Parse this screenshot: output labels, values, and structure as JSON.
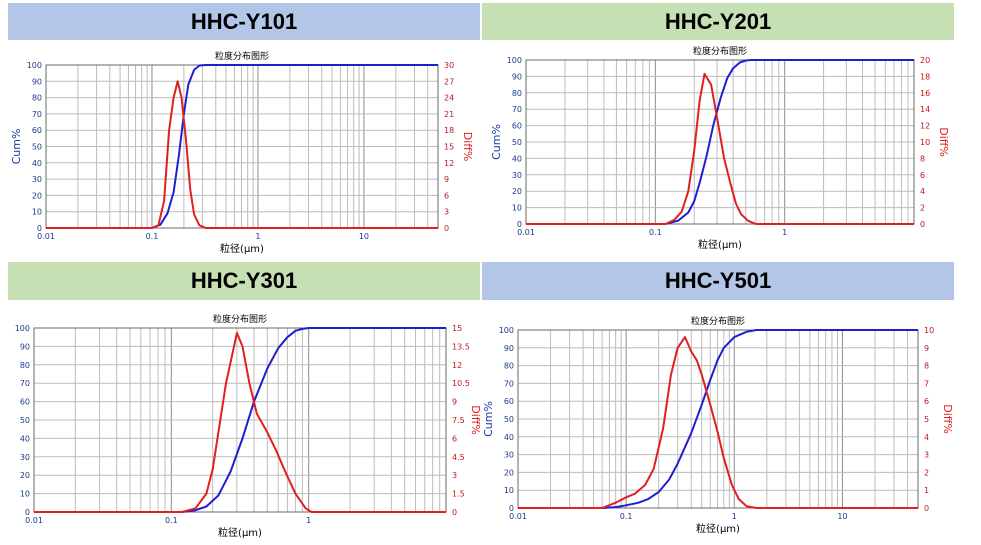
{
  "colors": {
    "cum": "#1f1fd0",
    "diff": "#e02020",
    "header_blue": "#b4c6e7",
    "header_green": "#c6e0b4",
    "grid": "#9a9a9a",
    "axis_label": "#1a3a8a"
  },
  "panels": [
    {
      "header": "HHC-Y101"
    },
    {
      "header": "HHC-Y201"
    },
    {
      "header": "HHC-Y301"
    },
    {
      "header": "HHC-Y501"
    }
  ],
  "chart_data": [
    {
      "type": "line",
      "title": "粒度分布图形",
      "xlabel": "粒径(μm)",
      "ylabel": "Cum%",
      "y2label": "Diff%",
      "xscale": "log",
      "xlim": [
        0.01,
        50
      ],
      "x_ticks": [
        "0.01",
        "0.1",
        "1",
        "10"
      ],
      "ylim": [
        0,
        100
      ],
      "y_ticks": [
        "0",
        "10",
        "20",
        "30",
        "40",
        "50",
        "60",
        "70",
        "80",
        "90",
        "100"
      ],
      "y2lim": [
        0,
        30
      ],
      "y2_ticks": [
        "0",
        "3",
        "6",
        "9",
        "12",
        "15",
        "18",
        "21",
        "24",
        "27",
        "30"
      ],
      "series": [
        {
          "name": "Cum%",
          "axis": "left",
          "x": [
            0.01,
            0.1,
            0.12,
            0.14,
            0.16,
            0.18,
            0.2,
            0.22,
            0.25,
            0.28,
            0.32,
            50
          ],
          "y": [
            0,
            0,
            2,
            9,
            22,
            45,
            70,
            88,
            97,
            99.7,
            100,
            100
          ]
        },
        {
          "name": "Diff%",
          "axis": "right",
          "x": [
            0.01,
            0.1,
            0.115,
            0.13,
            0.145,
            0.16,
            0.175,
            0.19,
            0.21,
            0.23,
            0.25,
            0.28,
            0.32,
            50
          ],
          "y": [
            0,
            0,
            0.5,
            5,
            18,
            24,
            27,
            24,
            16,
            7,
            2.5,
            0.5,
            0,
            0
          ]
        }
      ]
    },
    {
      "type": "line",
      "title": "粒度分布图形",
      "xlabel": "粒径(μm)",
      "ylabel": "Cum%",
      "y2label": "Diff%",
      "xscale": "log",
      "xlim": [
        0.01,
        10
      ],
      "x_ticks": [
        "0.01",
        "0.1",
        "1"
      ],
      "ylim": [
        0,
        100
      ],
      "y_ticks": [
        "0",
        "10",
        "20",
        "30",
        "40",
        "50",
        "60",
        "70",
        "80",
        "90",
        "100"
      ],
      "y2lim": [
        0,
        20
      ],
      "y2_ticks": [
        "0",
        "2",
        "4",
        "6",
        "8",
        "10",
        "12",
        "14",
        "16",
        "18",
        "20"
      ],
      "series": [
        {
          "name": "Cum%",
          "axis": "left",
          "x": [
            0.01,
            0.12,
            0.15,
            0.18,
            0.2,
            0.22,
            0.25,
            0.28,
            0.32,
            0.36,
            0.4,
            0.45,
            0.5,
            0.55,
            10
          ],
          "y": [
            0,
            0,
            2,
            7,
            14,
            25,
            42,
            60,
            77,
            89,
            95,
            98.5,
            99.7,
            100,
            100
          ]
        },
        {
          "name": "Diff%",
          "axis": "right",
          "x": [
            0.01,
            0.12,
            0.14,
            0.16,
            0.18,
            0.2,
            0.22,
            0.24,
            0.27,
            0.3,
            0.34,
            0.38,
            0.42,
            0.46,
            0.52,
            0.6,
            10
          ],
          "y": [
            0,
            0,
            0.5,
            1.5,
            4,
            9,
            15,
            18.3,
            17,
            13,
            8,
            5,
            2.5,
            1.2,
            0.4,
            0,
            0
          ]
        }
      ]
    },
    {
      "type": "line",
      "title": "粒度分布图形",
      "xlabel": "粒径(μm)",
      "ylabel": "Cum%",
      "y2label": "Diff%",
      "xscale": "log",
      "xlim": [
        0.01,
        10
      ],
      "x_ticks": [
        "0.01",
        "0.1",
        "1"
      ],
      "ylim": [
        0,
        100
      ],
      "y_ticks": [
        "0",
        "10",
        "20",
        "30",
        "40",
        "50",
        "60",
        "70",
        "80",
        "90",
        "100"
      ],
      "y2lim": [
        0,
        15
      ],
      "y2_ticks": [
        "0",
        "1.5",
        "3",
        "4.5",
        "6",
        "7.5",
        "9",
        "10.5",
        "12",
        "13.5",
        "15"
      ],
      "series": [
        {
          "name": "Cum%",
          "axis": "left",
          "x": [
            0.01,
            0.12,
            0.15,
            0.18,
            0.22,
            0.27,
            0.33,
            0.4,
            0.5,
            0.6,
            0.7,
            0.8,
            0.9,
            1.0,
            10
          ],
          "y": [
            0,
            0,
            1,
            3,
            9,
            22,
            40,
            60,
            78,
            89,
            95,
            98.5,
            99.5,
            100,
            100
          ]
        },
        {
          "name": "Diff%",
          "axis": "right",
          "x": [
            0.01,
            0.12,
            0.15,
            0.18,
            0.2,
            0.22,
            0.25,
            0.28,
            0.3,
            0.33,
            0.37,
            0.42,
            0.5,
            0.58,
            0.68,
            0.8,
            0.95,
            1.05,
            10
          ],
          "y": [
            0,
            0,
            0.3,
            1.5,
            3.5,
            6.5,
            10.5,
            13,
            14.6,
            13.5,
            10.5,
            8,
            6.5,
            5,
            3.2,
            1.5,
            0.3,
            0,
            0
          ]
        }
      ]
    },
    {
      "type": "line",
      "title": "粒度分布图形",
      "xlabel": "粒径(μm)",
      "ylabel": "Cum%",
      "y2label": "Diff%",
      "xscale": "log",
      "xlim": [
        0.01,
        50
      ],
      "x_ticks": [
        "0.01",
        "0.1",
        "1",
        "10"
      ],
      "ylim": [
        0,
        100
      ],
      "y_ticks": [
        "0",
        "10",
        "20",
        "30",
        "40",
        "50",
        "60",
        "70",
        "80",
        "90",
        "100"
      ],
      "y2lim": [
        0,
        10
      ],
      "y2_ticks": [
        "0",
        "1",
        "2",
        "3",
        "4",
        "5",
        "6",
        "7",
        "8",
        "9",
        "10"
      ],
      "series": [
        {
          "name": "Cum%",
          "axis": "left",
          "x": [
            0.01,
            0.06,
            0.08,
            0.1,
            0.13,
            0.16,
            0.2,
            0.25,
            0.3,
            0.4,
            0.5,
            0.6,
            0.7,
            0.8,
            1.0,
            1.3,
            1.6,
            50
          ],
          "y": [
            0,
            0,
            0.5,
            1.5,
            3,
            5,
            9,
            16,
            25,
            42,
            58,
            72,
            83,
            90,
            96,
            99,
            100,
            100
          ]
        },
        {
          "name": "Diff%",
          "axis": "right",
          "x": [
            0.01,
            0.06,
            0.08,
            0.1,
            0.12,
            0.15,
            0.18,
            0.22,
            0.26,
            0.3,
            0.35,
            0.4,
            0.45,
            0.5,
            0.6,
            0.7,
            0.8,
            0.95,
            1.1,
            1.3,
            1.6,
            2.0,
            50
          ],
          "y": [
            0,
            0,
            0.3,
            0.6,
            0.8,
            1.3,
            2.2,
            4.5,
            7.5,
            9.0,
            9.6,
            8.8,
            8.3,
            7.5,
            5.8,
            4.3,
            2.8,
            1.3,
            0.5,
            0.1,
            0,
            0,
            0
          ]
        }
      ]
    }
  ]
}
